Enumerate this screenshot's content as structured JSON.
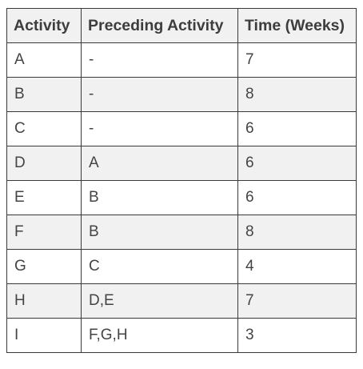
{
  "table": {
    "headers": [
      "Activity",
      "Preceding Activity",
      "Time (Weeks)"
    ],
    "rows": [
      [
        "A",
        "-",
        "7"
      ],
      [
        "B",
        "-",
        "8"
      ],
      [
        "C",
        "-",
        "6"
      ],
      [
        "D",
        "A",
        "6"
      ],
      [
        "E",
        "B",
        "6"
      ],
      [
        "F",
        "B",
        "8"
      ],
      [
        "G",
        "C",
        "4"
      ],
      [
        "H",
        "D,E",
        "7"
      ],
      [
        "I",
        "F,G,H",
        "3"
      ]
    ]
  }
}
